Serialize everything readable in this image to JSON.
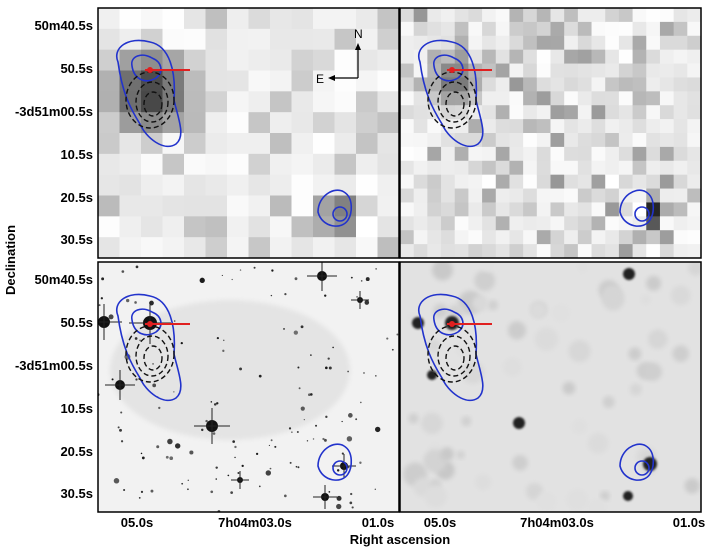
{
  "axes": {
    "xlabel": "Right ascension",
    "ylabel": "Declination",
    "x_ticks": [
      "05.0s",
      "7h04m03.0s",
      "01.0s"
    ],
    "y_ticks": [
      "50m40.5s",
      "50.5s",
      "-3d51m00.5s",
      "10.5s",
      "20.5s",
      "30.5s"
    ]
  },
  "compass": {
    "north": "N",
    "east": "E"
  },
  "colors": {
    "contour": "#2233cc",
    "dashed_contour": "#111111",
    "marker_line": "#e02020",
    "frame": "#000000"
  },
  "panels": [
    {
      "id": "top-left",
      "style": "pixelated-gray",
      "has_compass": true
    },
    {
      "id": "top-right",
      "style": "pixelated-noisy",
      "has_compass": false
    },
    {
      "id": "bottom-left",
      "style": "optical-starfield",
      "has_compass": false
    },
    {
      "id": "bottom-right",
      "style": "smoothed-infrared",
      "has_compass": false
    }
  ]
}
